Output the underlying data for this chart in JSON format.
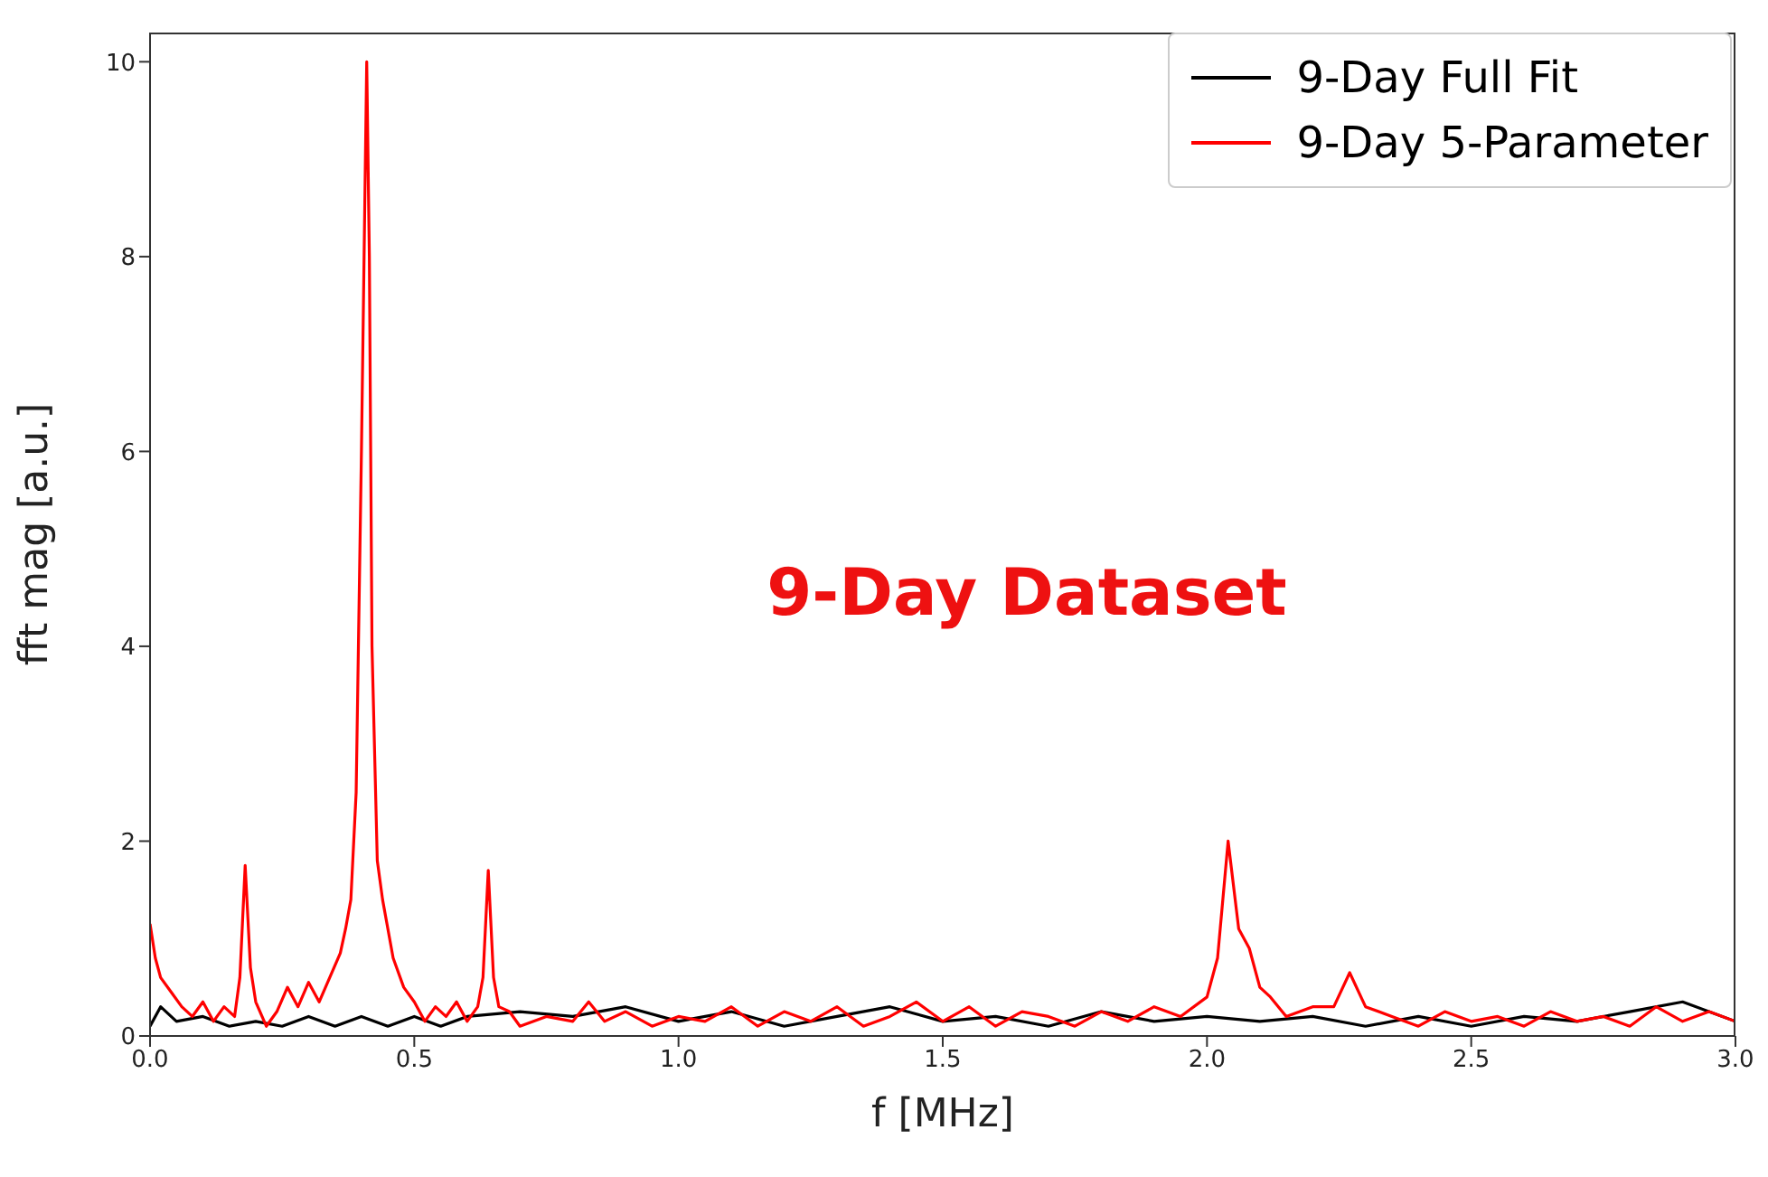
{
  "chart_data": {
    "type": "line",
    "xlabel": "f [MHz]",
    "ylabel": "fft mag [a.u.]",
    "annotations": [
      "9-Day Dataset"
    ],
    "xlim": [
      0,
      3
    ],
    "xticks": [
      {
        "value": 0,
        "label": "0.0"
      },
      {
        "value": 0.5,
        "label": "0.5"
      },
      {
        "value": 1,
        "label": "1.0"
      },
      {
        "value": 1.5,
        "label": "1.5"
      },
      {
        "value": 2,
        "label": "2.0"
      },
      {
        "value": 2.5,
        "label": "2.5"
      },
      {
        "value": 3,
        "label": "3.0"
      }
    ],
    "ylim": [
      0,
      10.3
    ],
    "yticks": [
      0,
      2,
      4,
      6,
      8,
      10
    ],
    "grid": false,
    "legend": "top right",
    "marker": "none",
    "line_style": "solid",
    "series": [
      {
        "name": "9-Day Full Fit",
        "color": "#000000",
        "x": [
          0,
          0.02,
          0.05,
          0.1,
          0.15,
          0.2,
          0.25,
          0.3,
          0.35,
          0.4,
          0.45,
          0.5,
          0.55,
          0.6,
          0.7,
          0.8,
          0.9,
          1,
          1.1,
          1.2,
          1.3,
          1.4,
          1.5,
          1.6,
          1.7,
          1.8,
          1.9,
          2,
          2.1,
          2.2,
          2.3,
          2.4,
          2.5,
          2.6,
          2.7,
          2.8,
          2.9,
          3
        ],
        "values": [
          0.1,
          0.3,
          0.15,
          0.2,
          0.1,
          0.15,
          0.1,
          0.2,
          0.1,
          0.2,
          0.1,
          0.2,
          0.1,
          0.2,
          0.25,
          0.2,
          0.3,
          0.15,
          0.25,
          0.1,
          0.2,
          0.3,
          0.15,
          0.2,
          0.1,
          0.25,
          0.15,
          0.2,
          0.15,
          0.2,
          0.1,
          0.2,
          0.1,
          0.2,
          0.15,
          0.25,
          0.35,
          0.15
        ]
      },
      {
        "name": "9-Day 5-Parameter",
        "color": "#ff0000",
        "x": [
          0,
          0.01,
          0.02,
          0.04,
          0.06,
          0.08,
          0.1,
          0.12,
          0.14,
          0.16,
          0.17,
          0.18,
          0.19,
          0.2,
          0.22,
          0.24,
          0.26,
          0.28,
          0.3,
          0.32,
          0.34,
          0.36,
          0.37,
          0.38,
          0.39,
          0.4,
          0.41,
          0.415,
          0.42,
          0.43,
          0.44,
          0.46,
          0.48,
          0.5,
          0.52,
          0.54,
          0.56,
          0.58,
          0.6,
          0.62,
          0.63,
          0.64,
          0.65,
          0.66,
          0.68,
          0.7,
          0.75,
          0.8,
          0.83,
          0.86,
          0.9,
          0.95,
          1,
          1.05,
          1.1,
          1.15,
          1.2,
          1.25,
          1.3,
          1.35,
          1.4,
          1.45,
          1.5,
          1.55,
          1.6,
          1.65,
          1.7,
          1.75,
          1.8,
          1.85,
          1.9,
          1.95,
          2,
          2.02,
          2.04,
          2.06,
          2.08,
          2.1,
          2.12,
          2.15,
          2.2,
          2.24,
          2.27,
          2.3,
          2.35,
          2.4,
          2.45,
          2.5,
          2.55,
          2.6,
          2.65,
          2.7,
          2.75,
          2.8,
          2.85,
          2.9,
          2.95,
          3
        ],
        "values": [
          1.15,
          0.8,
          0.6,
          0.45,
          0.3,
          0.2,
          0.35,
          0.15,
          0.3,
          0.2,
          0.6,
          1.75,
          0.7,
          0.35,
          0.1,
          0.25,
          0.5,
          0.3,
          0.55,
          0.35,
          0.6,
          0.85,
          1.1,
          1.4,
          2.5,
          6,
          10,
          8,
          4,
          1.8,
          1.4,
          0.8,
          0.5,
          0.35,
          0.15,
          0.3,
          0.2,
          0.35,
          0.15,
          0.3,
          0.6,
          1.7,
          0.6,
          0.3,
          0.25,
          0.1,
          0.2,
          0.15,
          0.35,
          0.15,
          0.25,
          0.1,
          0.2,
          0.15,
          0.3,
          0.1,
          0.25,
          0.15,
          0.3,
          0.1,
          0.2,
          0.35,
          0.15,
          0.3,
          0.1,
          0.25,
          0.2,
          0.1,
          0.25,
          0.15,
          0.3,
          0.2,
          0.4,
          0.8,
          2,
          1.1,
          0.9,
          0.5,
          0.4,
          0.2,
          0.3,
          0.3,
          0.65,
          0.3,
          0.2,
          0.1,
          0.25,
          0.15,
          0.2,
          0.1,
          0.25,
          0.15,
          0.2,
          0.1,
          0.3,
          0.15,
          0.25,
          0.15
        ]
      }
    ]
  }
}
